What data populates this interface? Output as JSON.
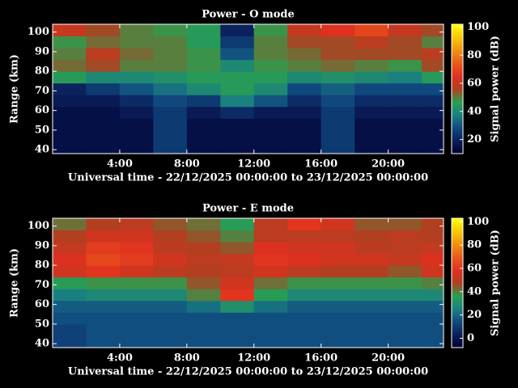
{
  "chart_data": [
    {
      "type": "heatmap",
      "title": "Power - O mode",
      "x_label": "Universal time - 22/12/2025 00:00:00 to 23/12/2025 00:00:00",
      "y_label": "Range (km)",
      "colorbar_label": "Signal power (dB)",
      "xlim": [
        0,
        23.3
      ],
      "ylim": [
        38,
        104
      ],
      "xticks": [
        {
          "value": 4,
          "label": "4:00"
        },
        {
          "value": 8,
          "label": "8:00"
        },
        {
          "value": 12,
          "label": "12:00"
        },
        {
          "value": 16,
          "label": "16:00"
        },
        {
          "value": 20,
          "label": "20:00"
        }
      ],
      "yticks": [
        40,
        50,
        60,
        70,
        80,
        90,
        100
      ],
      "clim": [
        10,
        102
      ],
      "cticks": [
        20,
        40,
        60,
        80,
        100
      ],
      "colormap": [
        "#000030",
        "#0a1e5a",
        "#104a80",
        "#1a8080",
        "#2aa050",
        "#b04020",
        "#e03020",
        "#e85a18",
        "#f09010",
        "#f8c808",
        "#ffff00"
      ],
      "x_bins": [
        0,
        2,
        4,
        6,
        8,
        10,
        12,
        14,
        16,
        18,
        20,
        22,
        23.3
      ],
      "y_bins": [
        38,
        44,
        50,
        56,
        62,
        68,
        74,
        80,
        86,
        92,
        98,
        104
      ],
      "z": [
        [
          15,
          15,
          15,
          25,
          15,
          15,
          15,
          15,
          25,
          15,
          15,
          15
        ],
        [
          15,
          15,
          15,
          25,
          15,
          15,
          15,
          15,
          25,
          15,
          15,
          15
        ],
        [
          15,
          15,
          15,
          25,
          15,
          15,
          15,
          15,
          25,
          15,
          15,
          15
        ],
        [
          15,
          15,
          18,
          25,
          18,
          22,
          18,
          18,
          25,
          18,
          18,
          18
        ],
        [
          18,
          18,
          22,
          28,
          25,
          38,
          30,
          22,
          28,
          22,
          22,
          22
        ],
        [
          20,
          25,
          30,
          35,
          40,
          45,
          40,
          28,
          32,
          28,
          28,
          28
        ],
        [
          45,
          40,
          40,
          42,
          45,
          45,
          45,
          40,
          42,
          40,
          38,
          45
        ],
        [
          52,
          55,
          50,
          50,
          48,
          40,
          48,
          50,
          52,
          50,
          48,
          55
        ],
        [
          50,
          58,
          52,
          50,
          48,
          30,
          50,
          52,
          55,
          55,
          55,
          58
        ],
        [
          48,
          52,
          50,
          50,
          45,
          25,
          50,
          55,
          55,
          58,
          55,
          50
        ],
        [
          60,
          55,
          50,
          48,
          45,
          20,
          48,
          60,
          65,
          70,
          60,
          55
        ]
      ]
    },
    {
      "type": "heatmap",
      "title": "Power - E mode",
      "x_label": "Universal time - 22/12/2025 00:00:00 to 23/12/2025 00:00:00",
      "y_label": "Range (km)",
      "colorbar_label": "Signal power (dB)",
      "xlim": [
        0,
        23.3
      ],
      "ylim": [
        38,
        104
      ],
      "xticks": [
        {
          "value": 4,
          "label": "4:00"
        },
        {
          "value": 8,
          "label": "8:00"
        },
        {
          "value": 12,
          "label": "12:00"
        },
        {
          "value": 16,
          "label": "16:00"
        },
        {
          "value": 20,
          "label": "20:00"
        }
      ],
      "yticks": [
        40,
        50,
        60,
        70,
        80,
        90,
        100
      ],
      "clim": [
        -8,
        103
      ],
      "cticks": [
        0,
        20,
        40,
        60,
        80,
        100
      ],
      "colormap": [
        "#000030",
        "#0a1e5a",
        "#104a80",
        "#1a8080",
        "#2aa050",
        "#b04020",
        "#e03020",
        "#e85a18",
        "#f09010",
        "#f8c808",
        "#ffff00"
      ],
      "x_bins": [
        0,
        2,
        4,
        6,
        8,
        10,
        12,
        14,
        16,
        18,
        20,
        22,
        23.3
      ],
      "y_bins": [
        38,
        44,
        50,
        56,
        62,
        68,
        74,
        80,
        86,
        92,
        98,
        104
      ],
      "z": [
        [
          12,
          15,
          15,
          15,
          15,
          15,
          15,
          15,
          15,
          15,
          15,
          15
        ],
        [
          12,
          15,
          15,
          15,
          15,
          15,
          15,
          15,
          15,
          15,
          15,
          15
        ],
        [
          15,
          15,
          15,
          15,
          15,
          15,
          15,
          15,
          15,
          15,
          15,
          15
        ],
        [
          18,
          18,
          18,
          18,
          22,
          30,
          22,
          18,
          18,
          18,
          18,
          18
        ],
        [
          25,
          28,
          28,
          28,
          40,
          60,
          35,
          28,
          28,
          28,
          28,
          28
        ],
        [
          35,
          38,
          38,
          38,
          45,
          55,
          42,
          38,
          38,
          38,
          38,
          40
        ],
        [
          55,
          60,
          55,
          50,
          48,
          50,
          55,
          50,
          48,
          48,
          45,
          55
        ],
        [
          58,
          65,
          62,
          55,
          50,
          52,
          60,
          58,
          55,
          55,
          52,
          58
        ],
        [
          52,
          62,
          60,
          50,
          48,
          45,
          58,
          55,
          55,
          50,
          50,
          52
        ],
        [
          48,
          55,
          55,
          48,
          45,
          40,
          50,
          50,
          50,
          48,
          50,
          48
        ],
        [
          42,
          48,
          50,
          45,
          42,
          35,
          50,
          60,
          55,
          45,
          45,
          48
        ]
      ]
    }
  ]
}
